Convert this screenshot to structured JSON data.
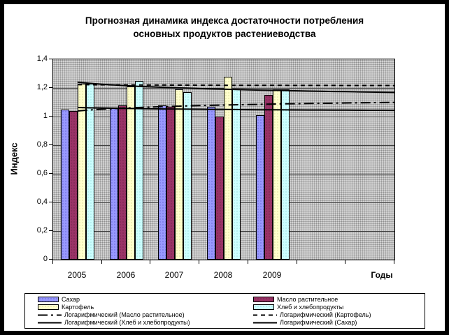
{
  "chart_data": {
    "type": "bar",
    "title_lines": [
      "Прогнозная динамика индекса достаточности потребления",
      "основных продуктов растениеводства"
    ],
    "title": "Прогнозная динамика индекса достаточности потребления основных продуктов растениеводства",
    "xlabel": "Годы",
    "ylabel": "Индекс",
    "categories": [
      "2005",
      "2006",
      "2007",
      "2008",
      "2009"
    ],
    "forecast_slots": 2,
    "ylim": [
      0,
      1.4
    ],
    "grid": true,
    "legend_position": "bottom",
    "plot_background": "gray-dot-pattern",
    "yticks": [
      {
        "label": "1,4",
        "value": 1.4
      },
      {
        "label": "1,2",
        "value": 1.2
      },
      {
        "label": "1",
        "value": 1.0
      },
      {
        "label": "0,8",
        "value": 0.8
      },
      {
        "label": "0,6",
        "value": 0.6
      },
      {
        "label": "0,4",
        "value": 0.4
      },
      {
        "label": "0,2",
        "value": 0.2
      },
      {
        "label": "0",
        "value": 0.0
      }
    ],
    "series": [
      {
        "name": "Сахар",
        "color": "#9999FF",
        "dot_color": "#4a4ac0",
        "values": [
          1.05,
          1.06,
          1.08,
          1.07,
          1.01
        ]
      },
      {
        "name": "Масло растительное",
        "color": "#993366",
        "dot_color": "#5e1f3f",
        "values": [
          1.04,
          1.08,
          1.07,
          1.0,
          1.15
        ]
      },
      {
        "name": "Картофель",
        "color": "#FFFFCC",
        "dot_color": "#c9c983",
        "values": [
          1.23,
          1.21,
          1.19,
          1.28,
          1.19
        ]
      },
      {
        "name": "Хлеб и хлебопродукты",
        "color": "#CCFFFF",
        "dot_color": "#86cccc",
        "values": [
          1.23,
          1.25,
          1.17,
          1.19,
          1.19
        ]
      }
    ],
    "trendlines": [
      {
        "name": "Логарифмический (Масло растительное)",
        "style": "dashdot",
        "color": "#000000",
        "a": 1.039,
        "b": 0.0299,
        "start_value": 1.04,
        "end_value": 1.1
      },
      {
        "name": "Логарифмический (Картофель)",
        "style": "dashed",
        "color": "#000000",
        "a": 1.223,
        "b": -0.0031,
        "start_value": 1.22,
        "end_value": 1.22
      },
      {
        "name": "Логарифмический (Хлеб и хлебопродукты)",
        "style": "solid",
        "color": "#000000",
        "a": 1.24,
        "b": -0.0353,
        "start_value": 1.24,
        "end_value": 1.17
      },
      {
        "name": "Логарифмический (Сахар)",
        "style": "solid",
        "color": "#000000",
        "a": 1.0634,
        "b": -0.0099,
        "start_value": 1.06,
        "end_value": 1.04
      }
    ],
    "legend_order": [
      "series:0",
      "series:1",
      "series:2",
      "series:3",
      "trend:0",
      "trend:1",
      "trend:2",
      "trend:3"
    ]
  }
}
